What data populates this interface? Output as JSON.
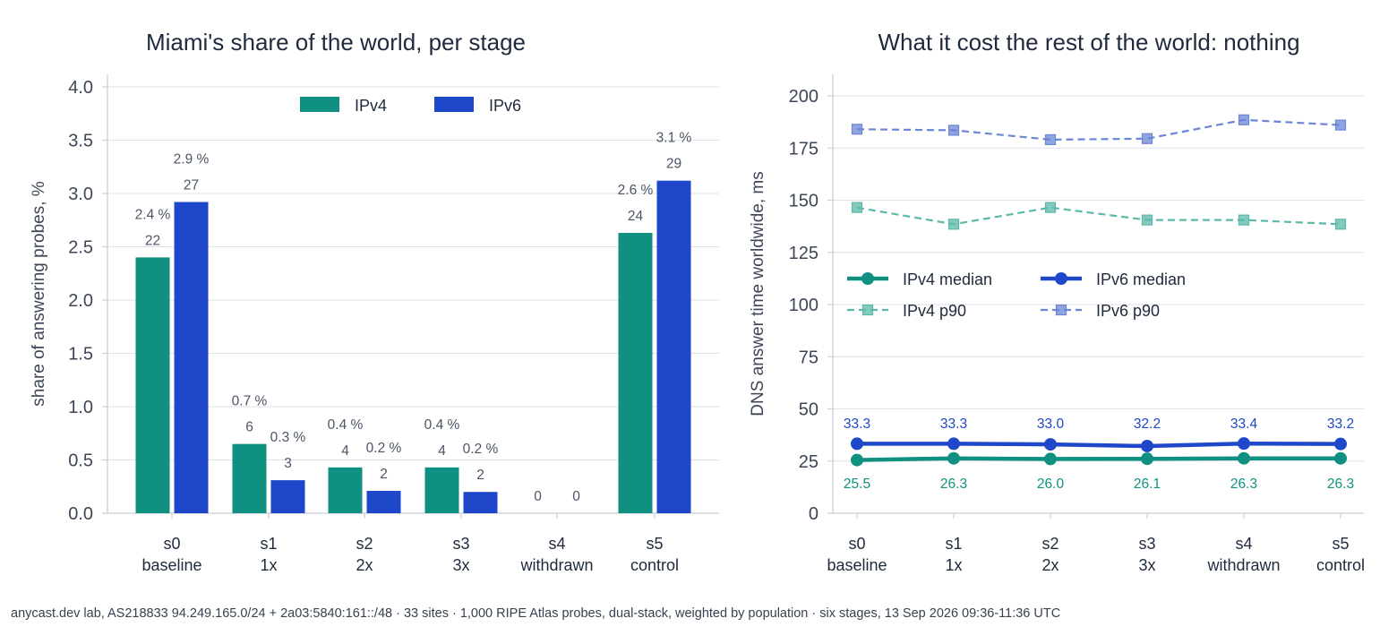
{
  "chart_data": [
    {
      "type": "bar",
      "title": "Miami's share of the world, per stage",
      "xlabel": "",
      "ylabel": "share of answering probes, %",
      "ylim": [
        0,
        4.0
      ],
      "yticks": [
        "0.0",
        "0.5",
        "1.0",
        "1.5",
        "2.0",
        "2.5",
        "3.0",
        "3.5",
        "4.0"
      ],
      "grid": "horizontal",
      "legend": "top-center",
      "categories": [
        {
          "stage": "s0",
          "label": "baseline"
        },
        {
          "stage": "s1",
          "label": "1x"
        },
        {
          "stage": "s2",
          "label": "2x"
        },
        {
          "stage": "s3",
          "label": "3x"
        },
        {
          "stage": "s4",
          "label": "withdrawn"
        },
        {
          "stage": "s5",
          "label": "control"
        }
      ],
      "series": [
        {
          "name": "IPv4",
          "color": "#0f9080",
          "values": [
            2.4,
            0.65,
            0.43,
            0.43,
            0,
            2.63
          ],
          "pct_labels": [
            "2.4 %",
            "0.7 %",
            "0.4 %",
            "0.4 %",
            null,
            "2.6 %"
          ],
          "count_labels": [
            "22",
            "6",
            "4",
            "4",
            "0",
            "24"
          ]
        },
        {
          "name": "IPv6",
          "color": "#1f47c9",
          "values": [
            2.92,
            0.31,
            0.21,
            0.2,
            0,
            3.12
          ],
          "pct_labels": [
            "2.9 %",
            "0.3 %",
            "0.2 %",
            "0.2 %",
            null,
            "3.1 %"
          ],
          "count_labels": [
            "27",
            "3",
            "2",
            "2",
            "0",
            "29"
          ]
        }
      ]
    },
    {
      "type": "line",
      "title": "What it cost the rest of the world: nothing",
      "xlabel": "",
      "ylabel": "DNS answer time worldwide, ms",
      "ylim": [
        0,
        210
      ],
      "yticks": [
        "0",
        "25",
        "50",
        "75",
        "100",
        "125",
        "150",
        "175",
        "200"
      ],
      "grid": "horizontal",
      "legend": "center-left",
      "categories": [
        {
          "stage": "s0",
          "label": "baseline"
        },
        {
          "stage": "s1",
          "label": "1x"
        },
        {
          "stage": "s2",
          "label": "2x"
        },
        {
          "stage": "s3",
          "label": "3x"
        },
        {
          "stage": "s4",
          "label": "withdrawn"
        },
        {
          "stage": "s5",
          "label": "control"
        }
      ],
      "series": [
        {
          "name": "IPv4 median",
          "color": "#0f9080",
          "style": "solid-circle",
          "values": [
            25.5,
            26.3,
            26.0,
            26.1,
            26.3,
            26.3
          ],
          "labels": [
            "25.5",
            "26.3",
            "26.0",
            "26.1",
            "26.3",
            "26.3"
          ]
        },
        {
          "name": "IPv6 median",
          "color": "#1f47c9",
          "style": "solid-circle",
          "values": [
            33.3,
            33.3,
            33.0,
            32.2,
            33.4,
            33.2
          ],
          "labels": [
            "33.3",
            "33.3",
            "33.0",
            "32.2",
            "33.4",
            "33.2"
          ]
        },
        {
          "name": "IPv4 p90",
          "color": "#5cb8a8",
          "style": "dashed-square",
          "values": [
            146.5,
            138.5,
            146.5,
            140.5,
            140.5,
            138.5
          ]
        },
        {
          "name": "IPv6 p90",
          "color": "#6b86d6",
          "style": "dashed-square",
          "values": [
            184,
            183.5,
            179,
            179.5,
            188.5,
            186
          ]
        }
      ]
    }
  ],
  "footnote": "anycast.dev lab, AS218833 94.249.165.0/24 + 2a03:5840:161::/48 · 33 sites · 1,000 RIPE Atlas probes, dual-stack, weighted by population · six stages, 13 Sep 2026 09:36-11:36 UTC"
}
